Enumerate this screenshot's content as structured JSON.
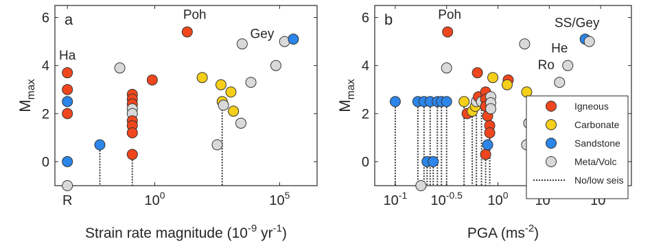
{
  "colors": {
    "Igneous": "#f0461e",
    "Carbonate": "#f5cf19",
    "Sandstone": "#2c85e8",
    "Meta/Volc": "#d9d9d9",
    "outline": "#333333",
    "axis": "#262626"
  },
  "legend": {
    "position": "right, inside panel b",
    "entries": [
      {
        "label": "Igneous",
        "class": "Igneous"
      },
      {
        "label": "Carbonate",
        "class": "Carbonate"
      },
      {
        "label": "Sandstone",
        "class": "Sandstone"
      },
      {
        "label": "Meta/Volc",
        "class": "Meta/Volc"
      },
      {
        "label": "No/low seis",
        "class": "dotted-line"
      }
    ]
  },
  "chart_data": [
    {
      "type": "scatter",
      "panel_label": "a",
      "xlabel": {
        "base": "Strain rate magnitude (10",
        "exp1": "-9",
        "mid": " yr",
        "exp2": "-1",
        "end": ")"
      },
      "ylabel": {
        "main": "M",
        "sub": "max"
      },
      "x_scale": "log10 (value shown as exponent)",
      "xlim_log10": [
        -4,
        6.5
      ],
      "ylim": [
        -1,
        6.5
      ],
      "xticks": [
        {
          "log10": -3.5,
          "label": "R"
        },
        {
          "log10": 0,
          "label": "10",
          "exp": "0"
        },
        {
          "log10": 5,
          "label": "10",
          "exp": "5"
        }
      ],
      "yticks": [
        0,
        2,
        4,
        6
      ],
      "annotations": [
        {
          "text": "Ha",
          "x_log10": -3.5,
          "y": 4.25
        },
        {
          "text": "Poh",
          "x_log10": 1.6,
          "y": 5.95
        },
        {
          "text": "Gey",
          "x_log10": 4.3,
          "y": 5.15
        }
      ],
      "points": [
        {
          "x_log10": -3.5,
          "y": 3.7,
          "class": "Igneous"
        },
        {
          "x_log10": -3.5,
          "y": 3.0,
          "class": "Igneous"
        },
        {
          "x_log10": -3.5,
          "y": 2.5,
          "class": "Sandstone"
        },
        {
          "x_log10": -3.5,
          "y": 2.0,
          "class": "Igneous"
        },
        {
          "x_log10": -3.5,
          "y": 0.0,
          "class": "Sandstone"
        },
        {
          "x_log10": -3.5,
          "y": -1.0,
          "class": "Meta/Volc"
        },
        {
          "x_log10": -2.2,
          "y": 0.7,
          "class": "Sandstone"
        },
        {
          "x_log10": -1.4,
          "y": 3.9,
          "class": "Meta/Volc"
        },
        {
          "x_log10": -0.9,
          "y": 2.8,
          "class": "Igneous"
        },
        {
          "x_log10": -0.9,
          "y": 2.6,
          "class": "Igneous"
        },
        {
          "x_log10": -0.9,
          "y": 2.4,
          "class": "Igneous"
        },
        {
          "x_log10": -0.9,
          "y": 2.2,
          "class": "Meta/Volc"
        },
        {
          "x_log10": -0.9,
          "y": 2.0,
          "class": "Meta/Volc"
        },
        {
          "x_log10": -0.9,
          "y": 1.7,
          "class": "Igneous"
        },
        {
          "x_log10": -0.9,
          "y": 1.5,
          "class": "Igneous"
        },
        {
          "x_log10": -0.9,
          "y": 1.2,
          "class": "Igneous"
        },
        {
          "x_log10": -0.9,
          "y": 0.3,
          "class": "Igneous"
        },
        {
          "x_log10": -0.1,
          "y": 3.4,
          "class": "Igneous"
        },
        {
          "x_log10": 1.3,
          "y": 5.4,
          "class": "Igneous"
        },
        {
          "x_log10": 1.9,
          "y": 3.5,
          "class": "Carbonate"
        },
        {
          "x_log10": 2.5,
          "y": 0.7,
          "class": "Meta/Volc"
        },
        {
          "x_log10": 2.65,
          "y": 3.2,
          "class": "Carbonate"
        },
        {
          "x_log10": 2.7,
          "y": 2.5,
          "class": "Carbonate"
        },
        {
          "x_log10": 2.75,
          "y": 2.35,
          "class": "Meta/Volc"
        },
        {
          "x_log10": 3.05,
          "y": 2.9,
          "class": "Carbonate"
        },
        {
          "x_log10": 3.15,
          "y": 2.1,
          "class": "Carbonate"
        },
        {
          "x_log10": 3.45,
          "y": 1.6,
          "class": "Meta/Volc"
        },
        {
          "x_log10": 3.5,
          "y": 4.9,
          "class": "Meta/Volc"
        },
        {
          "x_log10": 3.85,
          "y": 3.3,
          "class": "Meta/Volc"
        },
        {
          "x_log10": 4.85,
          "y": 4.0,
          "class": "Meta/Volc"
        },
        {
          "x_log10": 5.2,
          "y": 5.0,
          "class": "Meta/Volc"
        },
        {
          "x_log10": 5.55,
          "y": 5.1,
          "class": "Sandstone"
        }
      ],
      "no_low_seis_x_log10": [
        -3.5,
        -2.2,
        -0.9,
        2.7
      ]
    },
    {
      "type": "scatter",
      "panel_label": "b",
      "xlabel": {
        "base": "PGA (ms",
        "exp1": "-2",
        "end": ")"
      },
      "ylabel": {
        "main": "M",
        "sub": "max"
      },
      "x_scale": "log10 (value shown as exponent)",
      "xlim_log10": [
        -1.2,
        1.3
      ],
      "ylim": [
        -1,
        6.5
      ],
      "xticks": [
        {
          "log10": -1,
          "label": "10",
          "exp": "-1"
        },
        {
          "log10": -0.5,
          "label": "10",
          "exp": "-0.5"
        },
        {
          "log10": 0,
          "label": "10",
          "exp": "0"
        },
        {
          "log10": 0.5,
          "label": "10",
          "exp": "0.5"
        },
        {
          "log10": 1,
          "label": "10",
          "exp": "1"
        }
      ],
      "yticks": [
        0,
        2,
        4,
        6
      ],
      "annotations": [
        {
          "text": "Poh",
          "x_log10": -0.47,
          "y": 5.95
        },
        {
          "text": "SS/Gey",
          "x_log10": 0.77,
          "y": 5.6
        },
        {
          "text": "He",
          "x_log10": 0.6,
          "y": 4.55
        },
        {
          "text": "Ro",
          "x_log10": 0.47,
          "y": 3.85
        }
      ],
      "points": [
        {
          "x_log10": -1.0,
          "y": 2.5,
          "class": "Sandstone"
        },
        {
          "x_log10": -0.78,
          "y": 2.5,
          "class": "Sandstone"
        },
        {
          "x_log10": -0.75,
          "y": -1.0,
          "class": "Meta/Volc"
        },
        {
          "x_log10": -0.72,
          "y": 2.5,
          "class": "Sandstone"
        },
        {
          "x_log10": -0.69,
          "y": 0.0,
          "class": "Sandstone"
        },
        {
          "x_log10": -0.66,
          "y": 2.5,
          "class": "Sandstone"
        },
        {
          "x_log10": -0.63,
          "y": 0.0,
          "class": "Sandstone"
        },
        {
          "x_log10": -0.59,
          "y": 2.5,
          "class": "Sandstone"
        },
        {
          "x_log10": -0.55,
          "y": 2.5,
          "class": "Sandstone"
        },
        {
          "x_log10": -0.5,
          "y": 3.9,
          "class": "Meta/Volc"
        },
        {
          "x_log10": -0.49,
          "y": 5.4,
          "class": "Igneous"
        },
        {
          "x_log10": -0.5,
          "y": 2.5,
          "class": "Sandstone"
        },
        {
          "x_log10": -0.33,
          "y": 2.5,
          "class": "Carbonate"
        },
        {
          "x_log10": -0.3,
          "y": 2.0,
          "class": "Igneous"
        },
        {
          "x_log10": -0.25,
          "y": 2.1,
          "class": "Carbonate"
        },
        {
          "x_log10": -0.22,
          "y": 2.3,
          "class": "Carbonate"
        },
        {
          "x_log10": -0.21,
          "y": 2.5,
          "class": "Meta/Volc"
        },
        {
          "x_log10": -0.2,
          "y": 3.7,
          "class": "Igneous"
        },
        {
          "x_log10": -0.19,
          "y": 2.7,
          "class": "Igneous"
        },
        {
          "x_log10": -0.16,
          "y": 2.5,
          "class": "Meta/Volc"
        },
        {
          "x_log10": -0.12,
          "y": 2.9,
          "class": "Igneous"
        },
        {
          "x_log10": -0.12,
          "y": 2.6,
          "class": "Igneous"
        },
        {
          "x_log10": -0.12,
          "y": 2.3,
          "class": "Igneous"
        },
        {
          "x_log10": -0.12,
          "y": 0.3,
          "class": "Igneous"
        },
        {
          "x_log10": -0.1,
          "y": 0.7,
          "class": "Sandstone"
        },
        {
          "x_log10": -0.1,
          "y": 1.9,
          "class": "Igneous"
        },
        {
          "x_log10": -0.08,
          "y": 1.5,
          "class": "Igneous"
        },
        {
          "x_log10": -0.08,
          "y": 1.2,
          "class": "Igneous"
        },
        {
          "x_log10": -0.07,
          "y": 2.7,
          "class": "Meta/Volc"
        },
        {
          "x_log10": -0.07,
          "y": 2.45,
          "class": "Meta/Volc"
        },
        {
          "x_log10": -0.07,
          "y": 2.2,
          "class": "Meta/Volc"
        },
        {
          "x_log10": -0.05,
          "y": 3.5,
          "class": "Carbonate"
        },
        {
          "x_log10": 0.1,
          "y": 3.4,
          "class": "Igneous"
        },
        {
          "x_log10": 0.09,
          "y": 3.2,
          "class": "Carbonate"
        },
        {
          "x_log10": 0.28,
          "y": 2.9,
          "class": "Carbonate"
        },
        {
          "x_log10": 0.26,
          "y": 4.9,
          "class": "Meta/Volc"
        },
        {
          "x_log10": 0.28,
          "y": 0.7,
          "class": "Meta/Volc"
        },
        {
          "x_log10": 0.3,
          "y": 1.6,
          "class": "Meta/Volc"
        },
        {
          "x_log10": 0.6,
          "y": 3.3,
          "class": "Meta/Volc"
        },
        {
          "x_log10": 0.68,
          "y": 4.0,
          "class": "Meta/Volc"
        },
        {
          "x_log10": 0.85,
          "y": 5.1,
          "class": "Sandstone"
        },
        {
          "x_log10": 0.89,
          "y": 5.0,
          "class": "Meta/Volc"
        }
      ],
      "no_low_seis_x_log10": [
        -1.0,
        -0.78,
        -0.75,
        -0.72,
        -0.69,
        -0.66,
        -0.63,
        -0.59,
        -0.55,
        -0.5,
        -0.33,
        -0.25,
        -0.21,
        -0.16,
        -0.12,
        -0.08
      ]
    }
  ]
}
